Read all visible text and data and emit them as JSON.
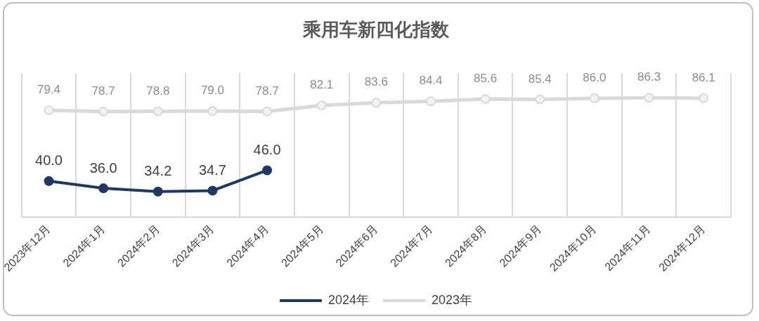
{
  "chart_data": {
    "type": "line",
    "title": "乘用车新四化指数",
    "categories": [
      "2023年12月",
      "2024年1月",
      "2024年2月",
      "2024年3月",
      "2024年4月",
      "2024年5月",
      "2024年6月",
      "2024年7月",
      "2024年8月",
      "2024年9月",
      "2024年10月",
      "2024年11月",
      "2024年12月"
    ],
    "series": [
      {
        "name": "2024年",
        "color": "#203864",
        "values": [
          40.0,
          36.0,
          34.2,
          34.7,
          46.0,
          null,
          null,
          null,
          null,
          null,
          null,
          null,
          null
        ],
        "value_labels": [
          "40.0",
          "36.0",
          "34.2",
          "34.7",
          "46.0",
          null,
          null,
          null,
          null,
          null,
          null,
          null,
          null
        ]
      },
      {
        "name": "2023年",
        "color": "#d9d9d9",
        "values": [
          79.4,
          78.7,
          78.8,
          79.0,
          78.7,
          82.1,
          83.6,
          84.4,
          85.6,
          85.4,
          86.0,
          86.3,
          86.1
        ],
        "value_labels": [
          "79.4",
          "78.7",
          "78.8",
          "79.0",
          "78.7",
          "82.1",
          "83.6",
          "84.4",
          "85.6",
          "85.4",
          "86.0",
          "86.3",
          "86.1"
        ]
      }
    ],
    "grid": "x",
    "legend": "bottom",
    "marker": "circle",
    "line_style": "solid"
  }
}
